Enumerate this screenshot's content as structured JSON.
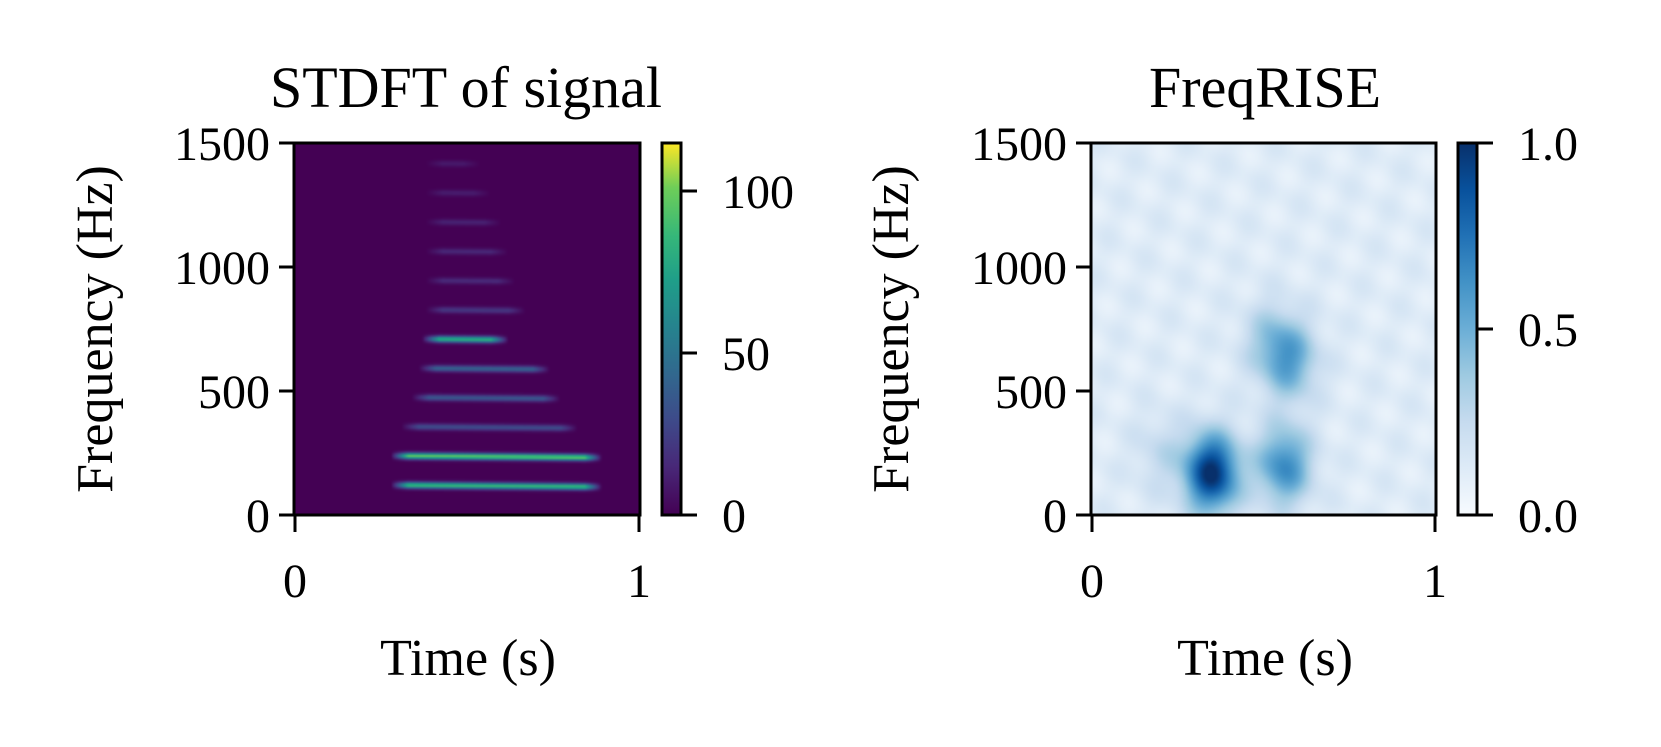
{
  "chart_data": [
    {
      "type": "heatmap",
      "title": "STDFT of signal",
      "xlabel": "Time (s)",
      "ylabel": "Frequency (Hz)",
      "xlim": [
        0,
        1
      ],
      "ylim": [
        0,
        1500
      ],
      "xticks": [
        "0",
        "1"
      ],
      "yticks": [
        "0",
        "500",
        "1000",
        "1500"
      ],
      "colormap": "viridis",
      "colorbar": {
        "range": [
          0,
          115
        ],
        "ticks": [
          "0",
          "50",
          "100"
        ]
      },
      "background_value": 0,
      "harmonic_fundamental_hz": 118,
      "harmonics": [
        {
          "freq": 118,
          "t_start": 0.3,
          "t_end": 0.87,
          "value": 85
        },
        {
          "freq": 236,
          "t_start": 0.3,
          "t_end": 0.87,
          "value": 95
        },
        {
          "freq": 354,
          "t_start": 0.33,
          "t_end": 0.8,
          "value": 30
        },
        {
          "freq": 472,
          "t_start": 0.36,
          "t_end": 0.75,
          "value": 35
        },
        {
          "freq": 590,
          "t_start": 0.38,
          "t_end": 0.72,
          "value": 40
        },
        {
          "freq": 708,
          "t_start": 0.39,
          "t_end": 0.6,
          "value": 80
        },
        {
          "freq": 826,
          "t_start": 0.4,
          "t_end": 0.65,
          "value": 20
        },
        {
          "freq": 944,
          "t_start": 0.4,
          "t_end": 0.62,
          "value": 15
        },
        {
          "freq": 1062,
          "t_start": 0.4,
          "t_end": 0.6,
          "value": 14
        },
        {
          "freq": 1180,
          "t_start": 0.4,
          "t_end": 0.58,
          "value": 12
        },
        {
          "freq": 1298,
          "t_start": 0.4,
          "t_end": 0.55,
          "value": 10
        },
        {
          "freq": 1416,
          "t_start": 0.4,
          "t_end": 0.52,
          "value": 9
        }
      ]
    },
    {
      "type": "heatmap",
      "title": "FreqRISE",
      "xlabel": "Time (s)",
      "ylabel": "Frequency (Hz)",
      "xlim": [
        0,
        1
      ],
      "ylim": [
        0,
        1500
      ],
      "xticks": [
        "0",
        "1"
      ],
      "yticks": [
        "0",
        "500",
        "1000",
        "1500"
      ],
      "colormap": "Blues",
      "colorbar": {
        "range": [
          0,
          1
        ],
        "ticks": [
          "0.0",
          "0.5",
          "1.0"
        ]
      },
      "background_value": 0.12,
      "hotspots": [
        {
          "t": 0.35,
          "f": 170,
          "value": 1.0
        },
        {
          "t": 0.56,
          "f": 200,
          "value": 0.65
        },
        {
          "t": 0.58,
          "f": 620,
          "value": 0.5
        },
        {
          "t": 0.52,
          "f": 700,
          "value": 0.35
        },
        {
          "t": 0.2,
          "f": 250,
          "value": 0.25
        }
      ]
    }
  ]
}
